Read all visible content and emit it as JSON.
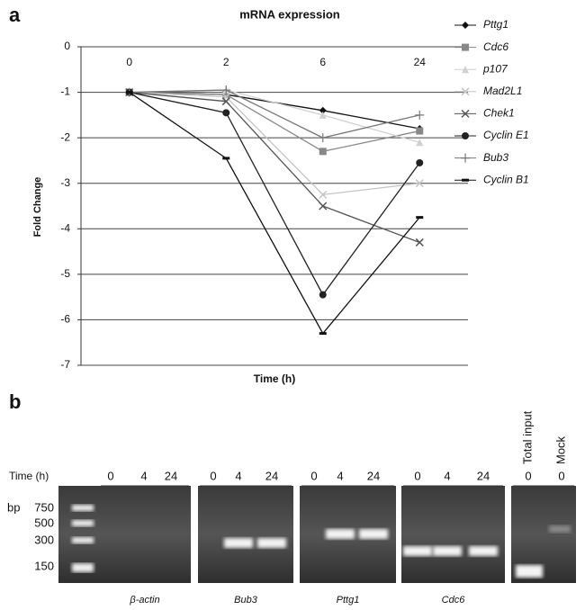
{
  "panel_a_label": "a",
  "chart_data": {
    "type": "line",
    "title": "mRNA expression",
    "x_label": "Time (h)",
    "y_label": "Fold Change",
    "categories": [
      "0",
      "2",
      "6",
      "24"
    ],
    "ylim": [
      -7,
      0
    ],
    "yticks": [
      0,
      -1,
      -2,
      -3,
      -4,
      -5,
      -6,
      -7
    ],
    "grid": true,
    "series": [
      {
        "name": "Pttg1",
        "color": "#111111",
        "marker": "diamond",
        "values": [
          -1,
          -1.05,
          -1.4,
          -1.8
        ]
      },
      {
        "name": "Cdc6",
        "color": "#888888",
        "marker": "square",
        "values": [
          -1,
          -1.05,
          -2.3,
          -1.85
        ]
      },
      {
        "name": "p107",
        "color": "#d0d0d0",
        "marker": "triangle",
        "values": [
          -1,
          -0.95,
          -1.5,
          -2.1
        ]
      },
      {
        "name": "Mad2L1",
        "color": "#c4c4c4",
        "marker": "x",
        "values": [
          -1,
          -1.1,
          -3.25,
          -3.0
        ]
      },
      {
        "name": "Chek1",
        "color": "#555555",
        "marker": "x",
        "values": [
          -1,
          -1.2,
          -3.5,
          -4.3
        ]
      },
      {
        "name": "Cyclin E1",
        "color": "#222222",
        "marker": "circle",
        "values": [
          -1,
          -1.45,
          -5.45,
          -2.55
        ]
      },
      {
        "name": "Bub3",
        "color": "#777777",
        "marker": "plus",
        "values": [
          -1,
          -0.95,
          -2.0,
          -1.5
        ]
      },
      {
        "name": "Cyclin B1",
        "color": "#111111",
        "marker": "dash",
        "values": [
          -1,
          -2.45,
          -6.3,
          -3.75
        ]
      }
    ]
  },
  "panel_b": {
    "label": "b",
    "time_label": "Time (h)",
    "bp_label": "bp",
    "ladder": [
      "750",
      "500",
      "300",
      "150"
    ],
    "gels": [
      {
        "gene": "β-actin",
        "times": [
          "0",
          "4",
          "24"
        ]
      },
      {
        "gene": "Bub3",
        "times": [
          "0",
          "4",
          "24"
        ]
      },
      {
        "gene": "Pttg1",
        "times": [
          "0",
          "4",
          "24"
        ]
      },
      {
        "gene": "Cdc6",
        "times": [
          "0",
          "4",
          "24"
        ]
      }
    ],
    "controls": [
      {
        "name": "Total input",
        "time": "0"
      },
      {
        "name": "Mock",
        "time": "0"
      }
    ]
  }
}
